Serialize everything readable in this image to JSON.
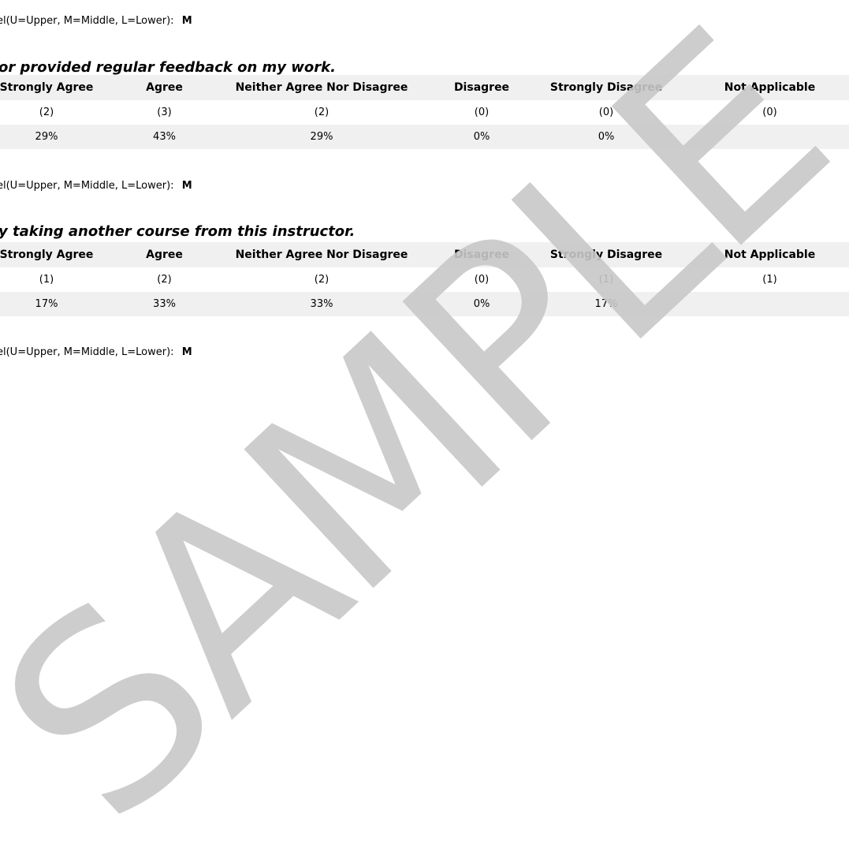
{
  "sections": [
    {
      "level_label": "el(U=Upper, M=Middle, L=Lower):",
      "level_value": "M"
    },
    {
      "question": "or provided regular feedback on my work.",
      "headers": [
        "Strongly Agree",
        "Agree",
        "Neither Agree Nor Disagree",
        "Disagree",
        "Strongly Disagree",
        "Not Applicable"
      ],
      "counts": [
        "(2)",
        "(3)",
        "(2)",
        "(0)",
        "(0)",
        "(0)"
      ],
      "percents": [
        "29%",
        "43%",
        "29%",
        "0%",
        "0%",
        ""
      ],
      "level_label": "el(U=Upper, M=Middle, L=Lower):",
      "level_value": "M"
    },
    {
      "question": "y taking another course from this instructor.",
      "headers": [
        "Strongly Agree",
        "Agree",
        "Neither Agree Nor Disagree",
        "Disagree",
        "Strongly Disagree",
        "Not Applicable"
      ],
      "counts": [
        "(1)",
        "(2)",
        "(2)",
        "(0)",
        "(1)",
        "(1)"
      ],
      "percents": [
        "17%",
        "33%",
        "33%",
        "0%",
        "17%",
        ""
      ],
      "level_label": "el(U=Upper, M=Middle, L=Lower):",
      "level_value": "M"
    }
  ],
  "watermark": {
    "text": "SAMPLE",
    "color": "#c8c8c8"
  }
}
